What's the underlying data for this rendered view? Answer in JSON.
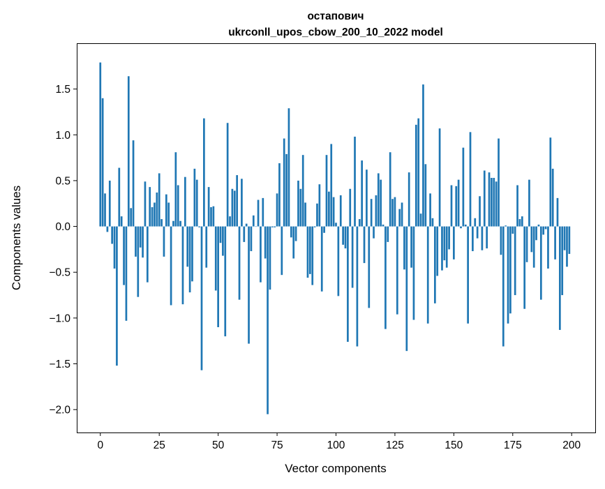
{
  "chart_data": {
    "type": "bar",
    "title": [
      "остапович",
      "ukrconll_upos_cbow_200_10_2022 model"
    ],
    "xlabel": "Vector components",
    "ylabel": "Components values",
    "xlim": [
      -10,
      210
    ],
    "ylim": [
      -2.25,
      2.0
    ],
    "xticks": [
      "0",
      "25",
      "50",
      "75",
      "100",
      "125",
      "150",
      "175",
      "200"
    ],
    "yticks": [
      "−2.0",
      "−1.5",
      "−1.0",
      "−0.5",
      "0.0",
      "0.5",
      "1.0",
      "1.5"
    ],
    "grid": false,
    "bar_color": "#1f77b4",
    "values": [
      1.79,
      1.4,
      0.36,
      -0.06,
      0.5,
      -0.19,
      -0.46,
      -1.52,
      0.64,
      0.11,
      -0.64,
      -1.03,
      1.64,
      0.2,
      0.94,
      -0.33,
      -0.77,
      -0.23,
      -0.34,
      0.49,
      -0.61,
      0.43,
      0.21,
      0.26,
      0.37,
      0.58,
      0.08,
      -0.33,
      0.35,
      0.26,
      -0.86,
      0.06,
      0.81,
      0.45,
      0.06,
      -0.85,
      0.54,
      -0.44,
      -0.72,
      -0.6,
      0.63,
      0.51,
      -0.01,
      -1.57,
      1.18,
      -0.45,
      0.43,
      0.21,
      0.22,
      -0.7,
      -1.1,
      -0.18,
      -0.32,
      -1.2,
      1.13,
      0.11,
      0.41,
      0.39,
      0.56,
      -0.8,
      0.52,
      -0.17,
      0.03,
      -1.28,
      -0.27,
      0.12,
      0.0,
      0.29,
      -0.61,
      0.31,
      -0.35,
      -2.05,
      -0.69,
      -0.01,
      -0.01,
      0.36,
      0.69,
      -0.53,
      0.96,
      0.79,
      1.29,
      -0.12,
      -0.35,
      -0.16,
      0.5,
      0.41,
      0.78,
      0.26,
      -0.56,
      -0.52,
      -0.64,
      -0.01,
      0.25,
      0.46,
      -0.71,
      -0.07,
      0.78,
      0.38,
      0.9,
      0.32,
      0.04,
      -0.76,
      0.34,
      -0.2,
      -0.24,
      -1.26,
      0.41,
      -0.67,
      0.98,
      -1.31,
      0.08,
      0.72,
      -0.4,
      0.62,
      -0.89,
      0.3,
      -0.13,
      0.34,
      0.58,
      0.51,
      0.02,
      -1.12,
      -0.17,
      0.81,
      0.3,
      0.32,
      -0.96,
      0.19,
      0.26,
      -0.47,
      -1.36,
      0.59,
      -0.45,
      -1.02,
      1.11,
      1.18,
      0.14,
      1.55,
      0.68,
      -1.06,
      0.36,
      0.09,
      -0.84,
      -0.54,
      1.07,
      -0.48,
      -0.37,
      -0.45,
      -0.25,
      0.45,
      -0.36,
      0.44,
      0.51,
      -0.02,
      0.86,
      0.02,
      -1.06,
      1.03,
      -0.27,
      0.09,
      -0.13,
      0.33,
      -0.26,
      0.61,
      -0.24,
      0.59,
      0.53,
      0.53,
      0.49,
      0.96,
      -0.31,
      -1.31,
      0.01,
      -1.06,
      -0.95,
      -0.08,
      -0.75,
      0.45,
      0.08,
      0.11,
      -0.9,
      -0.39,
      0.51,
      -0.28,
      -0.45,
      -0.15,
      0.02,
      -0.8,
      -0.09,
      -0.03,
      -0.46,
      0.97,
      0.63,
      -0.36,
      0.31,
      -1.13,
      -0.75,
      -0.26,
      -0.44,
      -0.3
    ]
  }
}
